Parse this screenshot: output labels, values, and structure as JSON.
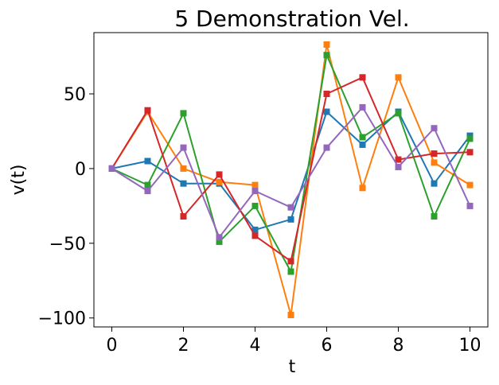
{
  "chart_data": {
    "type": "line",
    "title": "5 Demonstration Vel.",
    "xlabel": "t",
    "ylabel": "v(t)",
    "xlim": [
      -0.5,
      10.5
    ],
    "ylim": [
      -106,
      91
    ],
    "xticks": [
      0,
      2,
      4,
      6,
      8,
      10
    ],
    "yticks": [
      50,
      0,
      -50,
      -100
    ],
    "ytick_labels": [
      "50",
      "0",
      "−50",
      "−100"
    ],
    "x": [
      0,
      1,
      2,
      3,
      4,
      5,
      6,
      7,
      8,
      9,
      10
    ],
    "marker": "square",
    "grid": false,
    "series": [
      {
        "color": "#1f77b4",
        "values": [
          0,
          5,
          -10,
          -10,
          -41,
          -34,
          38,
          16,
          38,
          -10,
          22
        ]
      },
      {
        "color": "#ff7f0e",
        "values": [
          0,
          38,
          0,
          -9,
          -11,
          -98,
          83,
          -13,
          61,
          4,
          -11
        ]
      },
      {
        "color": "#2ca02c",
        "values": [
          0,
          -11,
          37,
          -49,
          -25,
          -69,
          76,
          21,
          37,
          -32,
          20
        ]
      },
      {
        "color": "#d62728",
        "values": [
          0,
          39,
          -32,
          -4,
          -45,
          -62,
          50,
          61,
          6,
          10,
          11
        ]
      },
      {
        "color": "#9467bd",
        "values": [
          0,
          -15,
          14,
          -46,
          -15,
          -26,
          14,
          41,
          1,
          27,
          -25
        ]
      }
    ]
  }
}
